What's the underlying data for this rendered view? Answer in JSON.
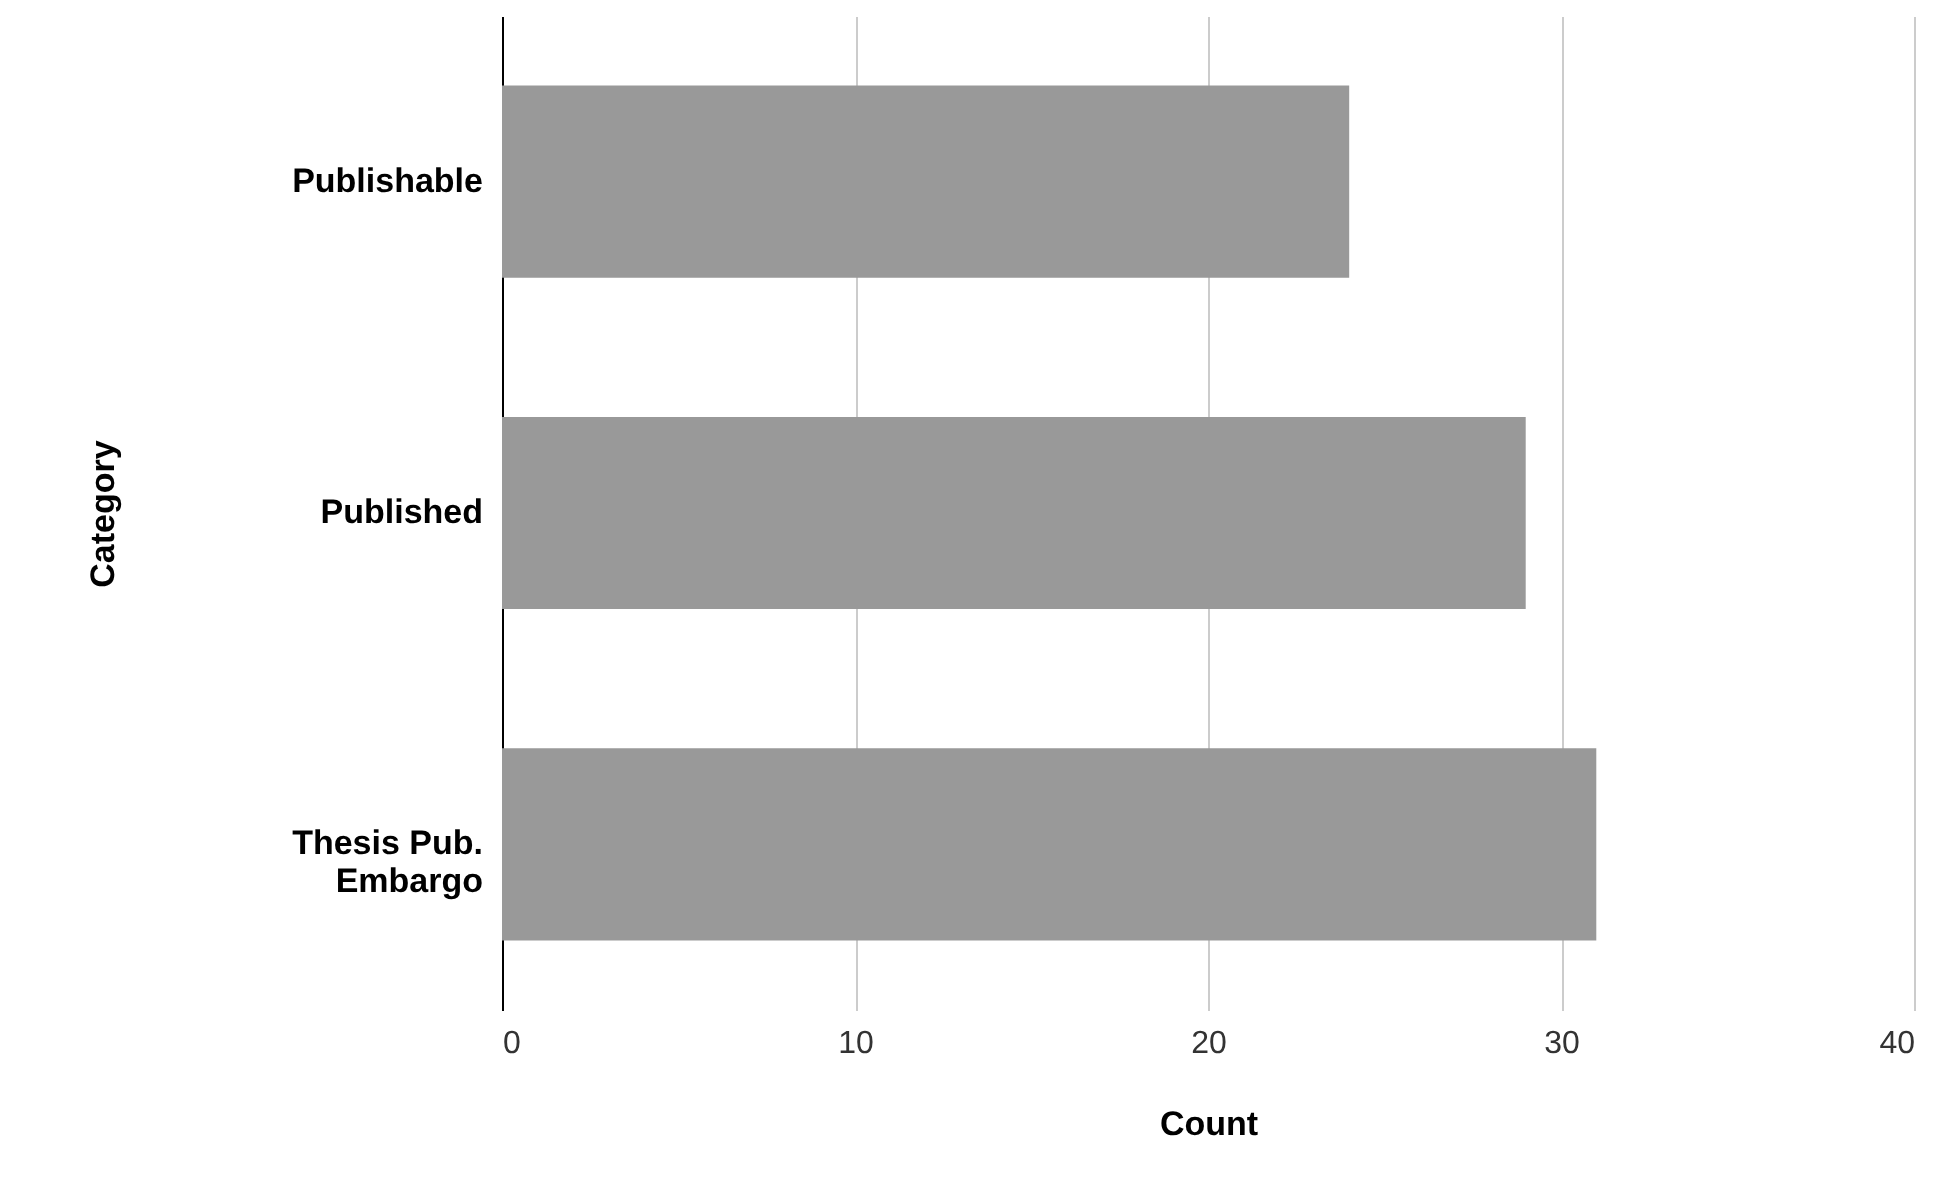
{
  "chart_data": {
    "type": "bar",
    "orientation": "horizontal",
    "xlabel": "Count",
    "ylabel": "Category",
    "categories": [
      "Publishable",
      "Published",
      "Thesis Pub.\nEmbargo"
    ],
    "values": [
      24,
      29,
      31
    ],
    "color": "#999999",
    "xlim": [
      0,
      40
    ],
    "xticks": [
      0,
      10,
      20,
      30,
      40
    ],
    "grid": "x"
  }
}
